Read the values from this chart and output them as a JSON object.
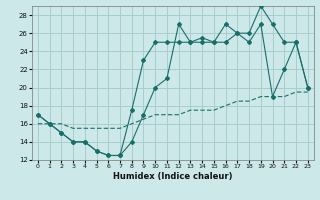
{
  "xlabel": "Humidex (Indice chaleur)",
  "bg_color": "#cce8e8",
  "grid_color": "#a8cccc",
  "line_color": "#1a6e6a",
  "xlim": [
    -0.5,
    23.5
  ],
  "ylim": [
    12,
    29
  ],
  "xticks": [
    0,
    1,
    2,
    3,
    4,
    5,
    6,
    7,
    8,
    9,
    10,
    11,
    12,
    13,
    14,
    15,
    16,
    17,
    18,
    19,
    20,
    21,
    22,
    23
  ],
  "yticks": [
    12,
    14,
    16,
    18,
    20,
    22,
    24,
    26,
    28
  ],
  "line1_x": [
    0,
    1,
    2,
    3,
    4,
    5,
    6,
    7,
    8,
    9,
    10,
    11,
    12,
    13,
    14,
    15,
    16,
    17,
    18,
    19,
    20,
    21,
    22,
    23
  ],
  "line1_y": [
    17,
    16,
    15,
    14,
    14,
    13,
    12.5,
    12.5,
    17.5,
    23,
    25,
    25,
    25,
    25,
    25,
    25,
    27,
    26,
    26,
    29,
    27,
    25,
    25,
    20
  ],
  "line2_x": [
    0,
    1,
    2,
    3,
    4,
    5,
    6,
    7,
    8,
    9,
    10,
    11,
    12,
    13,
    14,
    15,
    16,
    17,
    18,
    19,
    20,
    21,
    22,
    23
  ],
  "line2_y": [
    17,
    16,
    15,
    14,
    14,
    13,
    12.5,
    12.5,
    14,
    17,
    20,
    21,
    27,
    25,
    25.5,
    25,
    25,
    26,
    25,
    27,
    19,
    22,
    25,
    20
  ],
  "line3_x": [
    0,
    1,
    2,
    3,
    4,
    5,
    6,
    7,
    8,
    9,
    10,
    11,
    12,
    13,
    14,
    15,
    16,
    17,
    18,
    19,
    20,
    21,
    22,
    23
  ],
  "line3_y": [
    16,
    16,
    16,
    15.5,
    15.5,
    15.5,
    15.5,
    15.5,
    16,
    16.5,
    17,
    17,
    17,
    17.5,
    17.5,
    17.5,
    18,
    18.5,
    18.5,
    19,
    19,
    19,
    19.5,
    19.5
  ]
}
